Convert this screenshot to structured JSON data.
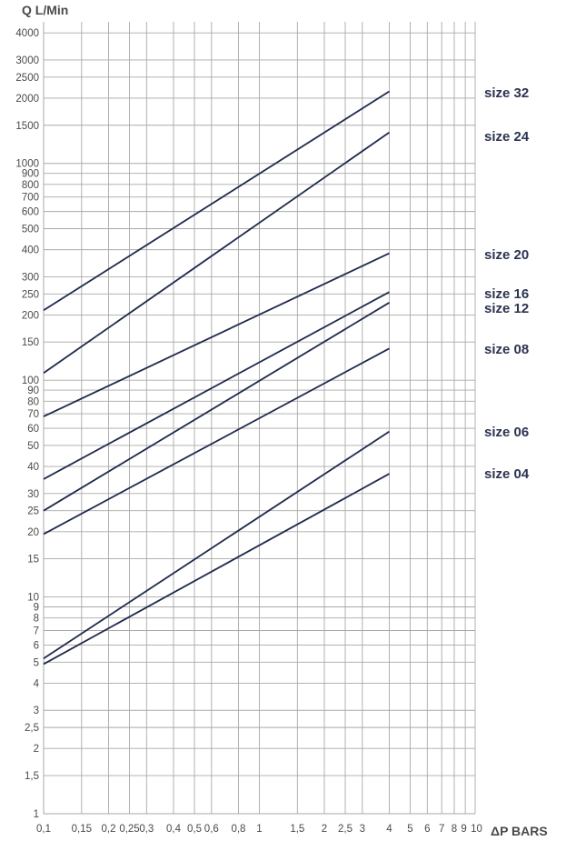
{
  "chart_data": {
    "type": "line",
    "title": "",
    "ylabel": "Q L/Min",
    "xlabel": "ΔP BARS",
    "x_scale": "log",
    "y_scale": "log",
    "xlim": [
      0.1,
      10
    ],
    "ylim": [
      1,
      4500
    ],
    "grid": true,
    "x_ticks": [
      "0,1",
      "0,15",
      "0,2",
      "0,25",
      "0,3",
      "0,4",
      "0,5",
      "0,6",
      "0,8",
      "1",
      "1,5",
      "2",
      "2,5",
      "3",
      "4",
      "5",
      "6",
      "7",
      "8",
      "9",
      "10"
    ],
    "x_tick_values": [
      0.1,
      0.15,
      0.2,
      0.25,
      0.3,
      0.4,
      0.5,
      0.6,
      0.8,
      1,
      1.5,
      2,
      2.5,
      3,
      4,
      5,
      6,
      7,
      8,
      9,
      10
    ],
    "y_ticks": [
      "1",
      "1,5",
      "2",
      "2,5",
      "3",
      "4",
      "5",
      "6",
      "7",
      "8",
      "9",
      "10",
      "15",
      "20",
      "25",
      "30",
      "40",
      "50",
      "60",
      "70",
      "80",
      "90",
      "100",
      "150",
      "200",
      "250",
      "300",
      "400",
      "500",
      "600",
      "700",
      "800",
      "900",
      "1000",
      "1500",
      "2000",
      "2500",
      "3000",
      "4000"
    ],
    "y_tick_values": [
      1,
      1.5,
      2,
      2.5,
      3,
      4,
      5,
      6,
      7,
      8,
      9,
      10,
      15,
      20,
      25,
      30,
      40,
      50,
      60,
      70,
      80,
      90,
      100,
      150,
      200,
      250,
      300,
      400,
      500,
      600,
      700,
      800,
      900,
      1000,
      1500,
      2000,
      2500,
      3000,
      4000
    ],
    "series": [
      {
        "name": "size 32",
        "x": [
          0.1,
          4
        ],
        "y": [
          210,
          2150
        ]
      },
      {
        "name": "size 24",
        "x": [
          0.1,
          4
        ],
        "y": [
          108,
          1390
        ]
      },
      {
        "name": "size 20",
        "x": [
          0.1,
          4
        ],
        "y": [
          68,
          385
        ]
      },
      {
        "name": "size 16",
        "x": [
          0.1,
          4
        ],
        "y": [
          35,
          255
        ]
      },
      {
        "name": "size 12",
        "x": [
          0.1,
          4
        ],
        "y": [
          25,
          228
        ]
      },
      {
        "name": "size 08",
        "x": [
          0.1,
          4
        ],
        "y": [
          19.5,
          140
        ]
      },
      {
        "name": "size 06",
        "x": [
          0.1,
          4
        ],
        "y": [
          5.2,
          58
        ]
      },
      {
        "name": "size 04",
        "x": [
          0.1,
          4
        ],
        "y": [
          4.9,
          37
        ]
      }
    ],
    "line_color": "#1f2a4d",
    "grid_color": "#a9a9a9"
  }
}
